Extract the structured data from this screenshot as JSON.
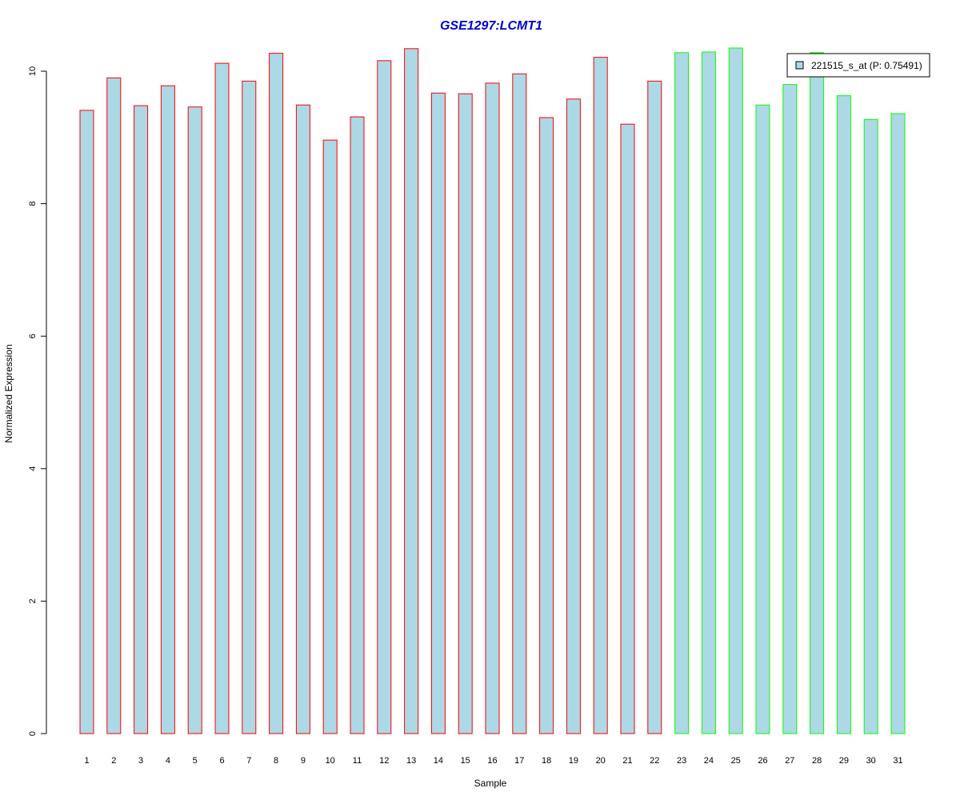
{
  "chart_data": {
    "type": "bar",
    "title": "GSE1297:LCMT1",
    "xlabel": "Sample",
    "ylabel": "Normalized Expression",
    "ylim": [
      0,
      10.5
    ],
    "yticks": [
      0,
      2,
      4,
      6,
      8,
      10
    ],
    "grid": false,
    "legend_position": "top-right",
    "categories": [
      "1",
      "2",
      "3",
      "4",
      "5",
      "6",
      "7",
      "8",
      "9",
      "10",
      "11",
      "12",
      "13",
      "14",
      "15",
      "16",
      "17",
      "18",
      "19",
      "20",
      "21",
      "22",
      "23",
      "24",
      "25",
      "26",
      "27",
      "28",
      "29",
      "30",
      "31"
    ],
    "values": [
      9.41,
      9.9,
      9.48,
      9.78,
      9.46,
      10.12,
      9.85,
      10.27,
      9.49,
      8.96,
      9.31,
      10.16,
      10.34,
      9.67,
      9.66,
      9.82,
      9.96,
      9.3,
      9.58,
      10.21,
      9.2,
      9.85,
      10.28,
      10.29,
      10.35,
      9.49,
      9.8,
      10.28,
      9.63,
      9.27,
      9.36
    ],
    "group_of_bar": [
      "red",
      "red",
      "red",
      "red",
      "red",
      "red",
      "red",
      "red",
      "red",
      "red",
      "red",
      "red",
      "red",
      "red",
      "red",
      "red",
      "red",
      "red",
      "red",
      "red",
      "red",
      "red",
      "green",
      "green",
      "green",
      "green",
      "green",
      "green",
      "green",
      "green",
      "green"
    ],
    "series": [
      {
        "name": "221515_s_at (P: 0.75491)",
        "fill": "#ADD8E6"
      }
    ],
    "colors": {
      "bar_fill": "#ADD8E6",
      "border_red": "#FF0000",
      "border_green": "#00FF00",
      "title": "#0000CC",
      "axis": "#000000"
    }
  }
}
